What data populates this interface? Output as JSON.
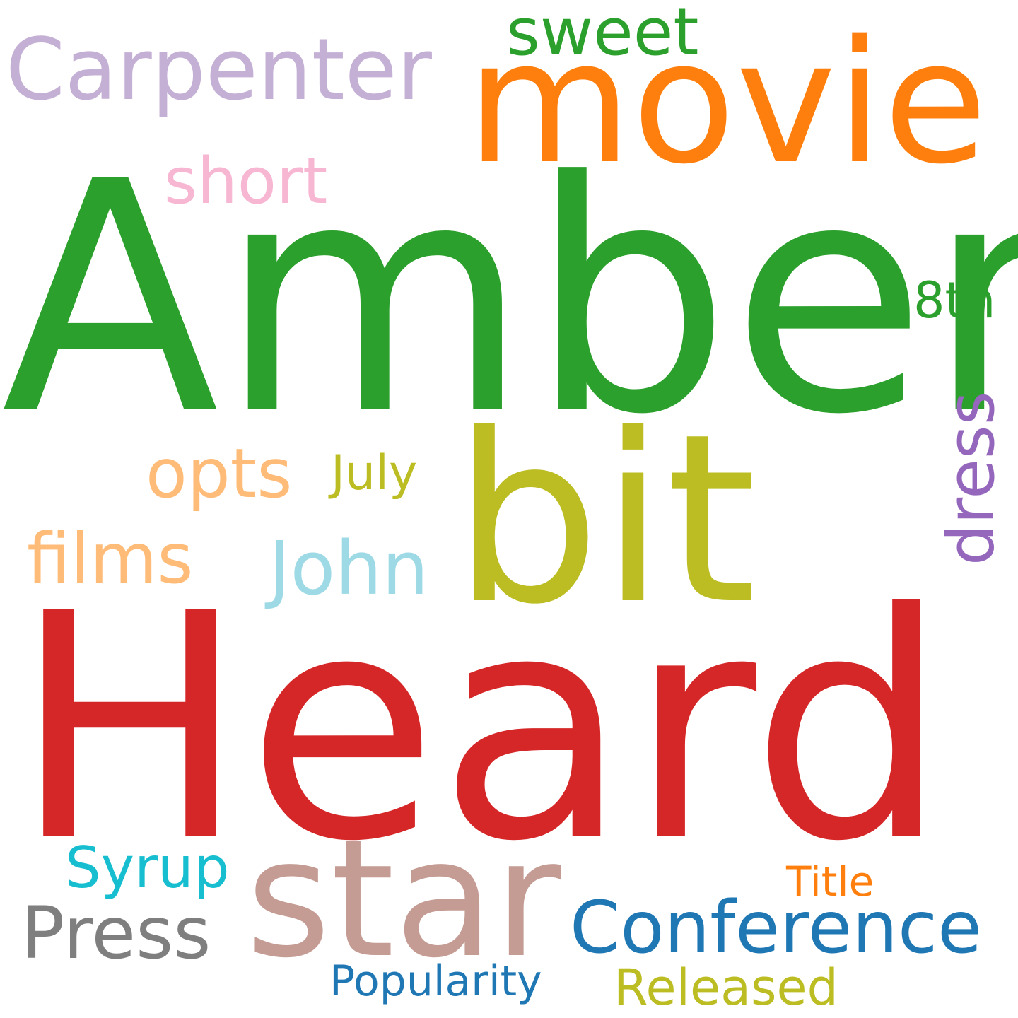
{
  "words": [
    {
      "text": "Amber",
      "color": "#2ca02c"
    },
    {
      "text": "Heard",
      "color": "#d62728"
    },
    {
      "text": "bit",
      "color": "#bcbd22"
    },
    {
      "text": "movie",
      "color": "#ff7f0e"
    },
    {
      "text": "star",
      "color": "#c49c94"
    },
    {
      "text": "Carpenter",
      "color": "#c5b0d5"
    },
    {
      "text": "sweet",
      "color": "#2ca02c"
    },
    {
      "text": "short",
      "color": "#f7b6d2"
    },
    {
      "text": "8th",
      "color": "#2ca02c"
    },
    {
      "text": "dress",
      "color": "#9467bd"
    },
    {
      "text": "opts",
      "color": "#ffbb78"
    },
    {
      "text": "July",
      "color": "#bcbd22"
    },
    {
      "text": "films",
      "color": "#ffbb78"
    },
    {
      "text": "John",
      "color": "#9edae5"
    },
    {
      "text": "Syrup",
      "color": "#17becf"
    },
    {
      "text": "Press",
      "color": "#7f7f7f"
    },
    {
      "text": "Conference",
      "color": "#1f77b4"
    },
    {
      "text": "Title",
      "color": "#ff7f0e"
    },
    {
      "text": "Popularity",
      "color": "#1f77b4"
    },
    {
      "text": "Released",
      "color": "#bcbd22"
    }
  ]
}
